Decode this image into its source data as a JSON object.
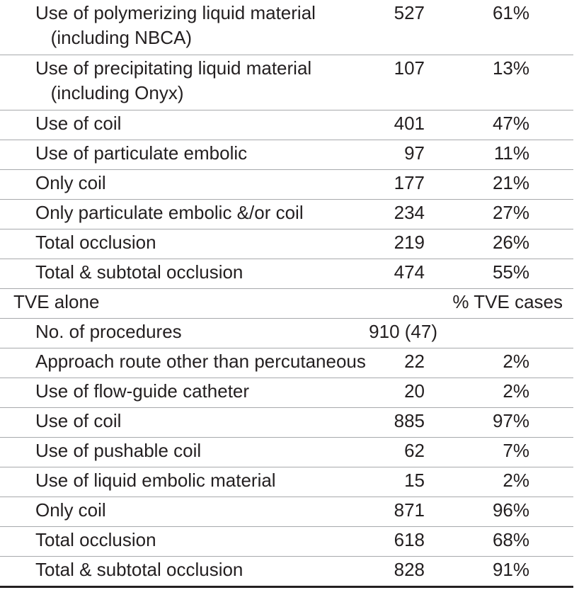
{
  "rows": [
    {
      "label": "Use of polymerizing liquid material\n   (including NBCA)",
      "count": "527",
      "pct": "61%"
    },
    {
      "label": "Use of precipitating liquid material\n   (including Onyx)",
      "count": "107",
      "pct": "13%"
    },
    {
      "label": "Use of coil",
      "count": "401",
      "pct": "47%"
    },
    {
      "label": "Use of particulate embolic",
      "count": "97",
      "pct": "11%"
    },
    {
      "label": "Only coil",
      "count": "177",
      "pct": "21%"
    },
    {
      "label": "Only particulate embolic &/or coil",
      "count": "234",
      "pct": "27%"
    },
    {
      "label": "Total occlusion",
      "count": "219",
      "pct": "26%"
    },
    {
      "label": "Total & subtotal occlusion",
      "count": "474",
      "pct": "55%"
    }
  ],
  "section": {
    "label": "TVE alone",
    "pct_header": "% TVE cases"
  },
  "tve_rows": [
    {
      "label": "No. of procedures",
      "count": "910 (47)",
      "pct": ""
    },
    {
      "label": "Approach route other than percutaneous",
      "count": "22",
      "pct": "2%"
    },
    {
      "label": "Use of flow-guide catheter",
      "count": "20",
      "pct": "2%"
    },
    {
      "label": "Use of coil",
      "count": "885",
      "pct": "97%"
    },
    {
      "label": "Use of pushable coil",
      "count": "62",
      "pct": "7%"
    },
    {
      "label": "Use of liquid embolic material",
      "count": "15",
      "pct": "2%"
    },
    {
      "label": "Only coil",
      "count": "871",
      "pct": "96%"
    },
    {
      "label": "Total occlusion",
      "count": "618",
      "pct": "68%"
    },
    {
      "label": "Total & subtotal occlusion",
      "count": "828",
      "pct": "91%"
    }
  ]
}
